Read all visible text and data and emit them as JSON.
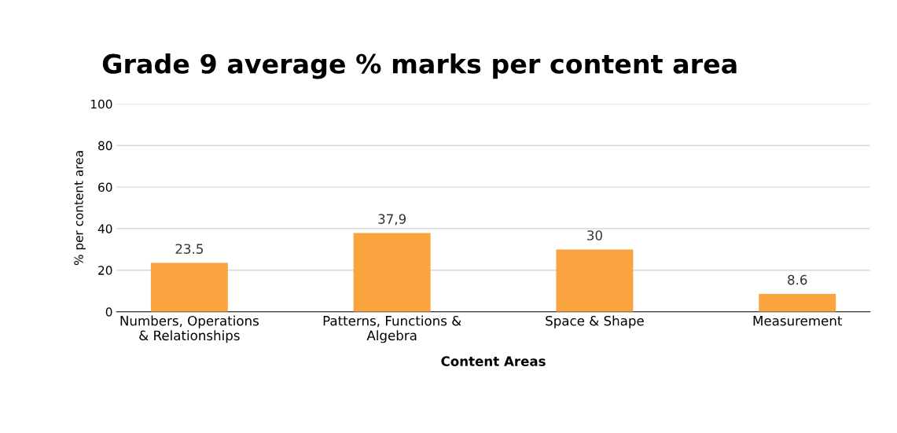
{
  "chart_data": {
    "type": "bar",
    "title": "Grade 9 average % marks per content area",
    "xlabel": "Content Areas",
    "ylabel": "% per content area",
    "categories": [
      "Numbers, Operations\n& Relationships",
      "Patterns, Functions &\nAlgebra",
      "Space & Shape",
      "Measurement"
    ],
    "values": [
      23.5,
      37.9,
      30,
      8.6
    ],
    "value_labels": [
      "23.5",
      "37,9",
      "30",
      "8.6"
    ],
    "color": "#f9a43e",
    "ylim": [
      0,
      100
    ],
    "yticks": [
      0,
      20,
      40,
      60,
      80,
      100
    ],
    "grid": "y",
    "legend": false
  }
}
